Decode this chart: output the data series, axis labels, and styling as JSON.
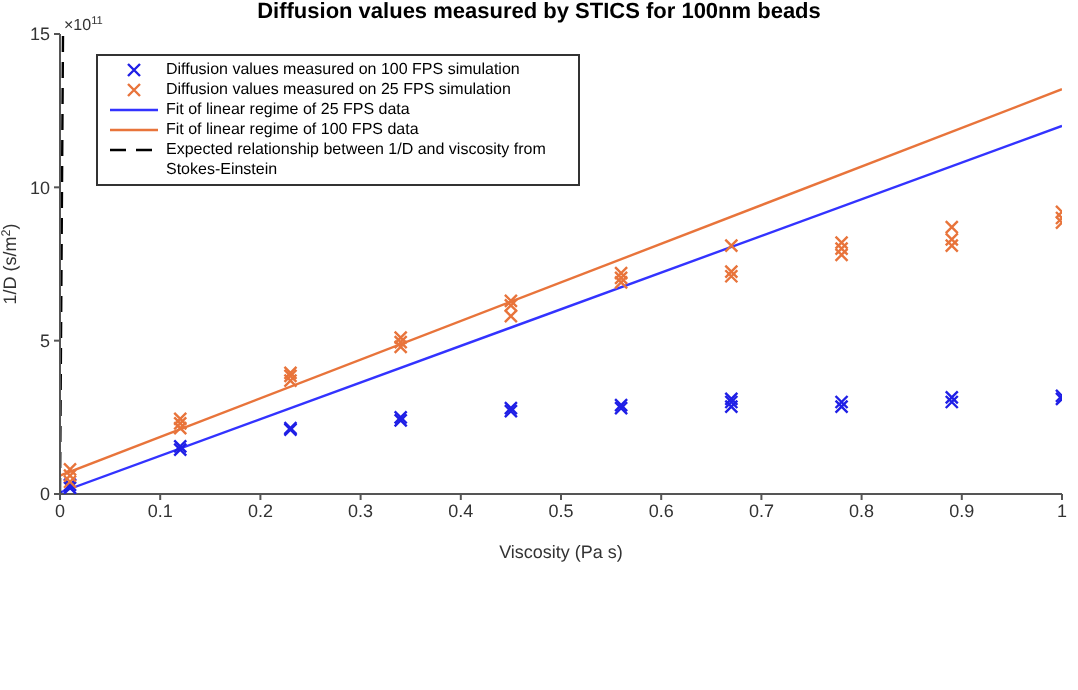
{
  "chart_data": {
    "type": "scatter",
    "title": "Diffusion values measured by STICS for 100nm beads",
    "xlabel": "Viscosity (Pa s)",
    "ylabel": "1/D (s/m$^{2}$)",
    "annotations": [
      "×10$^{11}$"
    ],
    "xlim": [
      0,
      1
    ],
    "ylim": [
      0,
      15
    ],
    "xticks": [
      0,
      0.1,
      0.2,
      0.3,
      0.4,
      0.5,
      0.6,
      0.7,
      0.8,
      0.9,
      1
    ],
    "yticks": [
      0,
      5,
      10,
      15
    ],
    "grid": false,
    "legend": "top left",
    "series": [
      {
        "name": "Diffusion values measured on 100 FPS simulation",
        "marker": "cross",
        "color": "#1f1fe6",
        "x": [
          0.01,
          0.01,
          0.12,
          0.12,
          0.23,
          0.23,
          0.34,
          0.34,
          0.45,
          0.45,
          0.56,
          0.56,
          0.67,
          0.67,
          0.67,
          0.78,
          0.78,
          0.89,
          0.89,
          1,
          1
        ],
        "values": [
          0.2,
          0.3,
          1.45,
          1.55,
          2.1,
          2.15,
          2.4,
          2.5,
          2.7,
          2.8,
          2.8,
          2.9,
          2.85,
          3.0,
          3.1,
          2.85,
          3.0,
          3.0,
          3.15,
          3.1,
          3.2
        ]
      },
      {
        "name": "Diffusion values measured on 25 FPS simulation",
        "marker": "cross",
        "color": "#e8743b",
        "x": [
          0.01,
          0.01,
          0.01,
          0.12,
          0.12,
          0.12,
          0.23,
          0.23,
          0.23,
          0.34,
          0.34,
          0.34,
          0.45,
          0.45,
          0.45,
          0.56,
          0.56,
          0.56,
          0.67,
          0.67,
          0.67,
          0.78,
          0.78,
          0.78,
          0.89,
          0.89,
          0.89,
          1,
          1,
          1
        ],
        "values": [
          0.4,
          0.6,
          0.8,
          2.15,
          2.3,
          2.45,
          3.7,
          3.85,
          3.95,
          4.8,
          4.95,
          5.1,
          5.8,
          6.15,
          6.3,
          6.9,
          7.05,
          7.2,
          7.1,
          7.25,
          8.1,
          7.8,
          8.0,
          8.2,
          8.1,
          8.3,
          8.7,
          8.85,
          9.0,
          9.2
        ]
      },
      {
        "name": "Fit of linear regime of 25 FPS data",
        "type": "line",
        "color": "#3333ff",
        "x": [
          0,
          1
        ],
        "values": [
          0.05,
          12.0
        ]
      },
      {
        "name": "Fit of linear regime of 100 FPS data",
        "type": "line",
        "color": "#e8743b",
        "x": [
          0,
          1
        ],
        "values": [
          0.6,
          13.2
        ]
      },
      {
        "name": "Expected relationship between 1/D and viscosity from Stokes-Einstein",
        "type": "line",
        "line_style": "dashed",
        "color": "#000000",
        "x": [
          0,
          0.003
        ],
        "values": [
          0,
          15
        ]
      }
    ]
  }
}
